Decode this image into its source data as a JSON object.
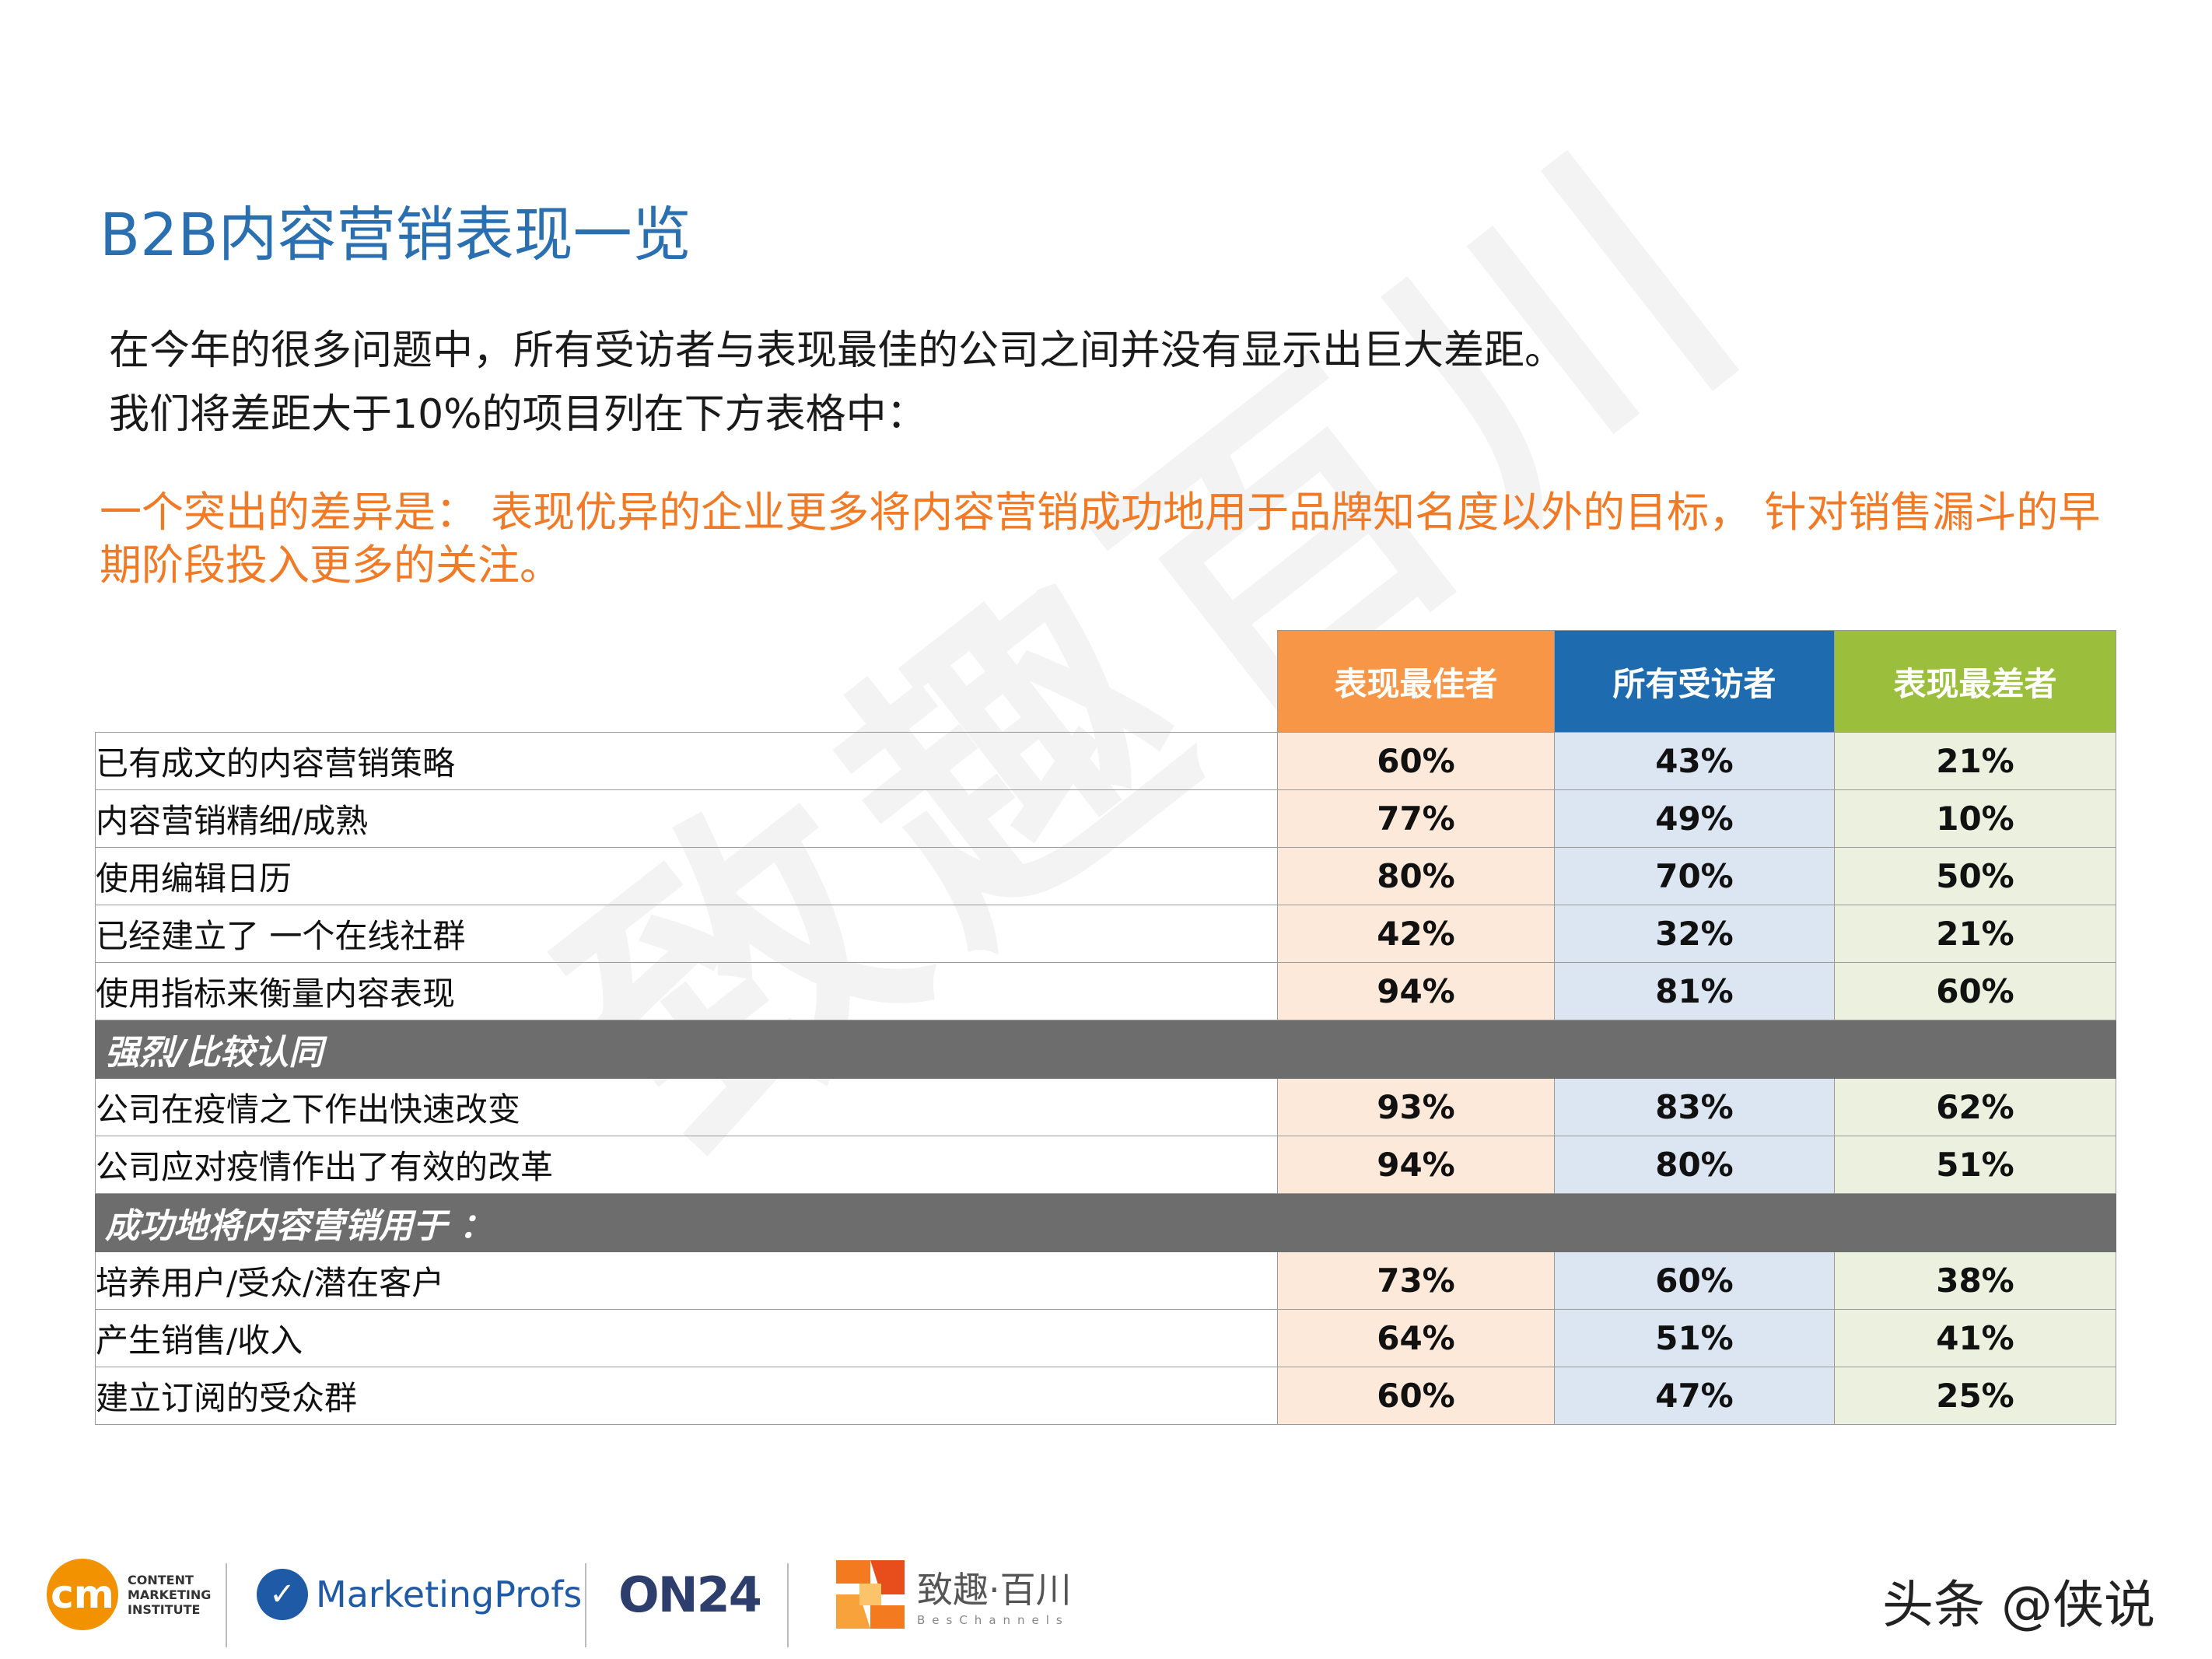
{
  "title": "B2B内容营销表现一览",
  "intro": {
    "line1": "在今年的很多问题中，所有受访者与表现最佳的公司之间并没有显示出巨大差距。",
    "line2": "我们将差距大于10%的项目列在下方表格中："
  },
  "highlight": "一个突出的差异是： 表现优异的企业更多将内容营销成功地用于品牌知名度以外的目标， 针对销售漏斗的早期阶段投入更多的关注。",
  "table": {
    "headers": [
      "表现最佳者",
      "所有受访者",
      "表现最差者"
    ],
    "group1": [
      {
        "label": "已有成文的内容营销策略",
        "best": "60%",
        "all": "43%",
        "worst": "21%"
      },
      {
        "label": "内容营销精细/成熟",
        "best": "77%",
        "all": "49%",
        "worst": "10%"
      },
      {
        "label": "使用编辑日历",
        "best": "80%",
        "all": "70%",
        "worst": "50%"
      },
      {
        "label": "已经建立了 一个在线社群",
        "best": "42%",
        "all": "32%",
        "worst": "21%"
      },
      {
        "label": "使用指标来衡量内容表现",
        "best": "94%",
        "all": "81%",
        "worst": "60%"
      }
    ],
    "section2": "强烈/比较认同",
    "group2": [
      {
        "label": "公司在疫情之下作出快速改变",
        "best": "93%",
        "all": "83%",
        "worst": "62%"
      },
      {
        "label": "公司应对疫情作出了有效的改革",
        "best": "94%",
        "all": "80%",
        "worst": "51%"
      }
    ],
    "section3": "成功地将内容营销用于 ：",
    "group3": [
      {
        "label": "培养用户/受众/潜在客户",
        "best": "73%",
        "all": "60%",
        "worst": "38%"
      },
      {
        "label": "产生销售/收入",
        "best": "64%",
        "all": "51%",
        "worst": "41%"
      },
      {
        "label": "建立订阅的受众群",
        "best": "60%",
        "all": "47%",
        "worst": "25%"
      }
    ]
  },
  "colors": {
    "best": "#f79646",
    "all": "#1f6bb0",
    "worst": "#9bbf3c",
    "title": "#2a6fb0",
    "highlight": "#f07a25"
  },
  "watermark": "致趣百川",
  "footer": {
    "cmi_mark": "cm",
    "cmi_text": [
      "CONTENT",
      "MARKETING",
      "INSTITUTE"
    ],
    "marketingprofs": "MarketingProfs",
    "on24": "ON24",
    "beschannels_cn": "致趣·百川",
    "beschannels_en": "BesChannels",
    "toutiao": "头条 @侠说"
  }
}
